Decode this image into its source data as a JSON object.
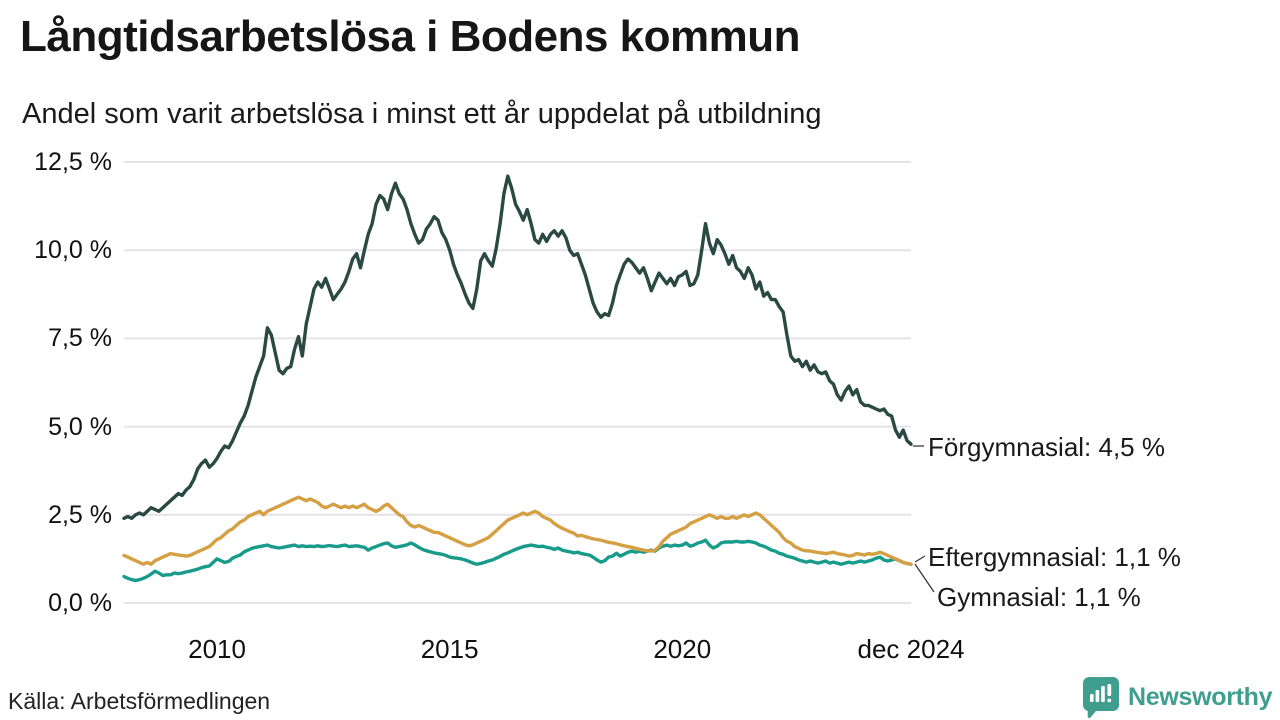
{
  "header": {
    "title": "Långtidsarbetslösa i Bodens kommun",
    "subtitle": "Andel som varit arbetslösa i minst ett år uppdelat på utbildning"
  },
  "annotations": [
    {
      "label": "Förgymnasial: 4,5 %"
    },
    {
      "label": "Eftergymnasial: 1,1 %"
    },
    {
      "label": "Gymnasial: 1,1 %"
    }
  ],
  "footer": {
    "source": "Källa: Arbetsförmedlingen",
    "logo_text": "Newsworthy"
  },
  "colors": {
    "forgymnasial": "#2a4a41",
    "eftergymnasial": "#d5a044",
    "gymnasial": "#189b8b",
    "gridline": "#e4e4e8",
    "connector": "#3a3a3a",
    "brand_teal": "#3f9e8e"
  },
  "chart_data": {
    "type": "line",
    "title": "Långtidsarbetslösa i Bodens kommun",
    "subtitle": "Andel som varit arbetslösa i minst ett år uppdelat på utbildning",
    "unit": "%",
    "grid": "horizontal",
    "legend_position": "end-of-line labels (right)",
    "ylim": [
      0,
      12.5
    ],
    "x_axis": {
      "start_year": 2008.0,
      "end_year": 2024.9167,
      "frequency": "monthly"
    },
    "y_ticks": [
      {
        "label": "0,0 %",
        "value": 0
      },
      {
        "label": "2,5 %",
        "value": 2.5
      },
      {
        "label": "5,0 %",
        "value": 5
      },
      {
        "label": "7,5 %",
        "value": 7.5
      },
      {
        "label": "10,0 %",
        "value": 10
      },
      {
        "label": "12,5 %",
        "value": 12.5
      }
    ],
    "x_ticks": [
      {
        "label": "2010",
        "year": 2010
      },
      {
        "label": "2015",
        "year": 2015
      },
      {
        "label": "2020",
        "year": 2020
      },
      {
        "label": "dec 2024",
        "year": 2024.9167
      }
    ],
    "series": [
      {
        "name": "Förgymnasial",
        "color": "#2a4a41",
        "end_value": 4.5,
        "end_label": "Förgymnasial: 4,5 %",
        "values": [
          2.4,
          2.45,
          2.4,
          2.5,
          2.55,
          2.5,
          2.6,
          2.7,
          2.65,
          2.6,
          2.7,
          2.8,
          2.9,
          3.0,
          3.1,
          3.05,
          3.2,
          3.3,
          3.5,
          3.8,
          3.95,
          4.05,
          3.85,
          3.95,
          4.1,
          4.3,
          4.45,
          4.4,
          4.6,
          4.85,
          5.1,
          5.3,
          5.6,
          6.0,
          6.4,
          6.7,
          7.0,
          7.8,
          7.6,
          7.1,
          6.6,
          6.5,
          6.65,
          6.7,
          7.2,
          7.55,
          7.0,
          7.9,
          8.4,
          8.9,
          9.1,
          8.95,
          9.2,
          8.9,
          8.6,
          8.75,
          8.9,
          9.1,
          9.4,
          9.75,
          9.9,
          9.5,
          10.0,
          10.45,
          10.75,
          11.3,
          11.55,
          11.45,
          11.15,
          11.6,
          11.9,
          11.6,
          11.45,
          11.15,
          10.75,
          10.45,
          10.2,
          10.3,
          10.6,
          10.75,
          10.95,
          10.85,
          10.5,
          10.3,
          10.0,
          9.6,
          9.3,
          9.05,
          8.75,
          8.5,
          8.35,
          8.9,
          9.7,
          9.9,
          9.7,
          9.55,
          10.05,
          10.75,
          11.6,
          12.1,
          11.75,
          11.3,
          11.1,
          10.85,
          11.15,
          10.75,
          10.3,
          10.2,
          10.45,
          10.25,
          10.45,
          10.55,
          10.4,
          10.55,
          10.35,
          10.0,
          9.85,
          9.9,
          9.6,
          9.3,
          8.9,
          8.5,
          8.25,
          8.1,
          8.2,
          8.15,
          8.5,
          9.0,
          9.3,
          9.6,
          9.75,
          9.65,
          9.5,
          9.35,
          9.5,
          9.2,
          8.85,
          9.1,
          9.35,
          9.2,
          9.05,
          9.2,
          9.0,
          9.25,
          9.3,
          9.4,
          9.0,
          9.05,
          9.3,
          10.0,
          10.75,
          10.2,
          9.9,
          10.3,
          10.15,
          9.9,
          9.6,
          9.85,
          9.5,
          9.4,
          9.2,
          9.5,
          9.3,
          8.9,
          9.1,
          8.7,
          8.8,
          8.6,
          8.6,
          8.4,
          8.25,
          7.6,
          7.0,
          6.85,
          6.9,
          6.7,
          6.85,
          6.6,
          6.75,
          6.55,
          6.5,
          6.55,
          6.3,
          6.2,
          5.9,
          5.75,
          6.0,
          6.15,
          5.9,
          6.05,
          5.7,
          5.6,
          5.6,
          5.55,
          5.5,
          5.45,
          5.5,
          5.35,
          5.3,
          4.9,
          4.7,
          4.9,
          4.6,
          4.5
        ]
      },
      {
        "name": "Gymnasial",
        "color": "#189b8b",
        "end_value": 1.1,
        "end_label": "Gymnasial: 1,1 %",
        "values": [
          0.75,
          0.7,
          0.66,
          0.64,
          0.66,
          0.7,
          0.75,
          0.82,
          0.9,
          0.85,
          0.78,
          0.8,
          0.8,
          0.85,
          0.83,
          0.85,
          0.88,
          0.9,
          0.93,
          0.96,
          1.0,
          1.03,
          1.05,
          1.15,
          1.25,
          1.2,
          1.15,
          1.18,
          1.27,
          1.32,
          1.36,
          1.45,
          1.5,
          1.55,
          1.58,
          1.6,
          1.62,
          1.64,
          1.6,
          1.58,
          1.56,
          1.58,
          1.6,
          1.62,
          1.64,
          1.6,
          1.62,
          1.6,
          1.61,
          1.6,
          1.62,
          1.6,
          1.61,
          1.63,
          1.61,
          1.6,
          1.62,
          1.64,
          1.6,
          1.61,
          1.62,
          1.6,
          1.58,
          1.5,
          1.56,
          1.6,
          1.64,
          1.68,
          1.7,
          1.62,
          1.58,
          1.6,
          1.62,
          1.65,
          1.7,
          1.65,
          1.58,
          1.52,
          1.48,
          1.45,
          1.42,
          1.4,
          1.38,
          1.35,
          1.3,
          1.28,
          1.27,
          1.25,
          1.22,
          1.18,
          1.13,
          1.1,
          1.12,
          1.15,
          1.19,
          1.22,
          1.27,
          1.32,
          1.38,
          1.42,
          1.47,
          1.52,
          1.56,
          1.6,
          1.62,
          1.64,
          1.62,
          1.6,
          1.61,
          1.58,
          1.56,
          1.52,
          1.56,
          1.5,
          1.47,
          1.45,
          1.42,
          1.44,
          1.4,
          1.38,
          1.36,
          1.3,
          1.22,
          1.16,
          1.2,
          1.3,
          1.33,
          1.41,
          1.33,
          1.38,
          1.44,
          1.47,
          1.44,
          1.47,
          1.44,
          1.47,
          1.5,
          1.47,
          1.56,
          1.61,
          1.64,
          1.61,
          1.64,
          1.62,
          1.64,
          1.7,
          1.61,
          1.64,
          1.7,
          1.73,
          1.78,
          1.64,
          1.56,
          1.61,
          1.7,
          1.73,
          1.73,
          1.73,
          1.75,
          1.73,
          1.73,
          1.75,
          1.73,
          1.7,
          1.64,
          1.61,
          1.56,
          1.5,
          1.47,
          1.41,
          1.38,
          1.33,
          1.3,
          1.27,
          1.22,
          1.19,
          1.16,
          1.19,
          1.16,
          1.13,
          1.16,
          1.19,
          1.13,
          1.16,
          1.13,
          1.1,
          1.13,
          1.16,
          1.13,
          1.16,
          1.19,
          1.16,
          1.19,
          1.22,
          1.27,
          1.3,
          1.22,
          1.19,
          1.22,
          1.25,
          1.2,
          1.15,
          1.12,
          1.1
        ]
      },
      {
        "name": "Eftergymnasial",
        "color": "#d5a044",
        "end_value": 1.1,
        "end_label": "Eftergymnasial: 1,1 %",
        "values": [
          1.35,
          1.3,
          1.25,
          1.2,
          1.15,
          1.1,
          1.15,
          1.1,
          1.2,
          1.25,
          1.3,
          1.35,
          1.4,
          1.38,
          1.36,
          1.35,
          1.33,
          1.35,
          1.4,
          1.45,
          1.5,
          1.55,
          1.6,
          1.7,
          1.8,
          1.85,
          1.95,
          2.05,
          2.1,
          2.2,
          2.3,
          2.35,
          2.45,
          2.5,
          2.55,
          2.6,
          2.5,
          2.6,
          2.65,
          2.7,
          2.75,
          2.8,
          2.85,
          2.9,
          2.95,
          3.0,
          2.95,
          2.9,
          2.95,
          2.9,
          2.85,
          2.75,
          2.7,
          2.75,
          2.8,
          2.75,
          2.7,
          2.75,
          2.7,
          2.75,
          2.7,
          2.75,
          2.8,
          2.7,
          2.65,
          2.6,
          2.65,
          2.75,
          2.8,
          2.7,
          2.6,
          2.5,
          2.45,
          2.3,
          2.2,
          2.15,
          2.2,
          2.15,
          2.1,
          2.05,
          2.0,
          2.0,
          1.95,
          1.9,
          1.85,
          1.8,
          1.75,
          1.7,
          1.65,
          1.62,
          1.65,
          1.7,
          1.75,
          1.8,
          1.85,
          1.95,
          2.05,
          2.15,
          2.25,
          2.35,
          2.4,
          2.45,
          2.5,
          2.55,
          2.5,
          2.55,
          2.6,
          2.55,
          2.45,
          2.4,
          2.35,
          2.25,
          2.18,
          2.12,
          2.07,
          2.02,
          1.98,
          1.9,
          1.92,
          1.88,
          1.85,
          1.82,
          1.8,
          1.78,
          1.75,
          1.72,
          1.7,
          1.68,
          1.65,
          1.62,
          1.6,
          1.58,
          1.55,
          1.52,
          1.5,
          1.48,
          1.47,
          1.5,
          1.6,
          1.75,
          1.85,
          1.95,
          2.0,
          2.05,
          2.1,
          2.15,
          2.25,
          2.3,
          2.35,
          2.4,
          2.45,
          2.5,
          2.45,
          2.4,
          2.45,
          2.4,
          2.4,
          2.45,
          2.4,
          2.45,
          2.5,
          2.45,
          2.5,
          2.55,
          2.5,
          2.4,
          2.3,
          2.2,
          2.1,
          2.0,
          1.85,
          1.75,
          1.7,
          1.6,
          1.55,
          1.5,
          1.48,
          1.47,
          1.45,
          1.43,
          1.42,
          1.4,
          1.42,
          1.44,
          1.4,
          1.38,
          1.36,
          1.33,
          1.35,
          1.4,
          1.38,
          1.36,
          1.4,
          1.38,
          1.4,
          1.44,
          1.4,
          1.35,
          1.3,
          1.25,
          1.2,
          1.15,
          1.12,
          1.1
        ]
      }
    ],
    "source": "Källa: Arbetsförmedlingen"
  }
}
